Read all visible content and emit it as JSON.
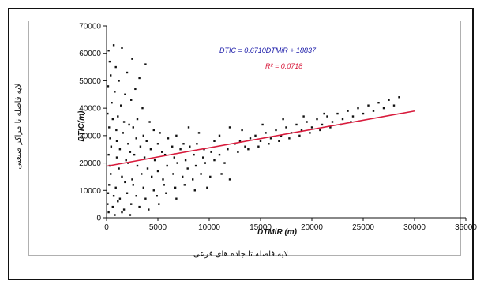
{
  "chart_data": {
    "type": "scatter",
    "x_axis_label": "DTMiR (m)",
    "y_axis_label": "DTIC(m)",
    "x_axis_label_fa": "لایه فاصله تا جاده های فرعی",
    "y_axis_label_fa": "لایه فاصله تا مراکز صنعتی",
    "equation": "DTIC = 0.6710DTMiR + 18837",
    "r_squared": "R² = 0.0718",
    "xlim": [
      0,
      35000
    ],
    "ylim": [
      0,
      70000
    ],
    "x_ticks": [
      "0",
      "5000",
      "10000",
      "15000",
      "20000",
      "25000",
      "30000",
      "35000"
    ],
    "y_ticks": [
      "0",
      "10000",
      "20000",
      "30000",
      "40000",
      "50000",
      "60000",
      "70000"
    ],
    "trendline": {
      "slope": 0.671,
      "intercept": 18837,
      "x_start": 0,
      "x_end": 30000
    },
    "colors": {
      "points": "#111111",
      "trendline": "#d81b3c",
      "equation": "#1a1aa8",
      "r_squared": "#d81b3c"
    },
    "grid": false,
    "legend": "none",
    "series": [
      {
        "values": [
          [
            200,
            61000
          ],
          [
            700,
            63000
          ],
          [
            1500,
            62000
          ],
          [
            300,
            57000
          ],
          [
            900,
            55000
          ],
          [
            2500,
            58000
          ],
          [
            3800,
            56000
          ],
          [
            400,
            52000
          ],
          [
            1200,
            50000
          ],
          [
            2000,
            53000
          ],
          [
            3200,
            51000
          ],
          [
            150,
            48000
          ],
          [
            800,
            46000
          ],
          [
            1800,
            45000
          ],
          [
            2800,
            47000
          ],
          [
            500,
            42000
          ],
          [
            1400,
            41000
          ],
          [
            2400,
            43000
          ],
          [
            3500,
            40000
          ],
          [
            100,
            38000
          ],
          [
            600,
            36000
          ],
          [
            1100,
            37000
          ],
          [
            1700,
            35000
          ],
          [
            2200,
            34000
          ],
          [
            3000,
            36000
          ],
          [
            4200,
            35000
          ],
          [
            250,
            33000
          ],
          [
            950,
            32000
          ],
          [
            1600,
            31000
          ],
          [
            2600,
            33000
          ],
          [
            3600,
            30000
          ],
          [
            4600,
            32000
          ],
          [
            5200,
            31000
          ],
          [
            350,
            29000
          ],
          [
            1000,
            28000
          ],
          [
            2100,
            27000
          ],
          [
            2900,
            29000
          ],
          [
            3900,
            28000
          ],
          [
            5000,
            27000
          ],
          [
            6000,
            29000
          ],
          [
            6800,
            30000
          ],
          [
            7500,
            27000
          ],
          [
            450,
            26000
          ],
          [
            1300,
            25000
          ],
          [
            2300,
            24000
          ],
          [
            3300,
            26000
          ],
          [
            4300,
            25000
          ],
          [
            5400,
            24000
          ],
          [
            6400,
            26000
          ],
          [
            7200,
            25000
          ],
          [
            8100,
            26000
          ],
          [
            8800,
            27000
          ],
          [
            9500,
            25000
          ],
          [
            200,
            23000
          ],
          [
            1000,
            22000
          ],
          [
            1900,
            21000
          ],
          [
            2700,
            23000
          ],
          [
            3700,
            22000
          ],
          [
            4700,
            21000
          ],
          [
            5700,
            23000
          ],
          [
            6600,
            22000
          ],
          [
            7700,
            21000
          ],
          [
            8500,
            23000
          ],
          [
            9400,
            22000
          ],
          [
            10200,
            24000
          ],
          [
            11000,
            23000
          ],
          [
            11800,
            25000
          ],
          [
            300,
            19000
          ],
          [
            1200,
            18000
          ],
          [
            2100,
            20000
          ],
          [
            3000,
            19000
          ],
          [
            4000,
            18000
          ],
          [
            5000,
            17000
          ],
          [
            5900,
            19000
          ],
          [
            6900,
            20000
          ],
          [
            7900,
            18000
          ],
          [
            8700,
            19000
          ],
          [
            9600,
            20000
          ],
          [
            10500,
            21000
          ],
          [
            11500,
            20000
          ],
          [
            400,
            16000
          ],
          [
            1500,
            15000
          ],
          [
            2500,
            14000
          ],
          [
            3400,
            16000
          ],
          [
            4400,
            15000
          ],
          [
            5500,
            14000
          ],
          [
            6500,
            16000
          ],
          [
            7400,
            15000
          ],
          [
            8400,
            14000
          ],
          [
            9200,
            16000
          ],
          [
            10100,
            15000
          ],
          [
            11200,
            16000
          ],
          [
            12000,
            14000
          ],
          [
            250,
            12000
          ],
          [
            900,
            11000
          ],
          [
            1800,
            13000
          ],
          [
            2600,
            12000
          ],
          [
            3600,
            11000
          ],
          [
            4600,
            10000
          ],
          [
            5600,
            12000
          ],
          [
            6700,
            11000
          ],
          [
            7600,
            12000
          ],
          [
            8600,
            10000
          ],
          [
            9800,
            11000
          ],
          [
            150,
            9000
          ],
          [
            700,
            8000
          ],
          [
            1300,
            7000
          ],
          [
            2000,
            9000
          ],
          [
            2900,
            8000
          ],
          [
            3800,
            7000
          ],
          [
            4900,
            8000
          ],
          [
            5800,
            9000
          ],
          [
            6800,
            7000
          ],
          [
            100,
            5000
          ],
          [
            600,
            4000
          ],
          [
            1100,
            6000
          ],
          [
            1700,
            3000
          ],
          [
            2400,
            5000
          ],
          [
            3200,
            4000
          ],
          [
            4100,
            3000
          ],
          [
            5100,
            5000
          ],
          [
            200,
            2000
          ],
          [
            800,
            1000
          ],
          [
            1500,
            2000
          ],
          [
            2300,
            1000
          ],
          [
            12500,
            27000
          ],
          [
            13000,
            28000
          ],
          [
            13500,
            26000
          ],
          [
            14000,
            29000
          ],
          [
            14500,
            30000
          ],
          [
            15000,
            28000
          ],
          [
            15500,
            31000
          ],
          [
            16000,
            29000
          ],
          [
            16500,
            32000
          ],
          [
            17000,
            30000
          ],
          [
            17500,
            33000
          ],
          [
            18000,
            31000
          ],
          [
            18500,
            34000
          ],
          [
            19000,
            32000
          ],
          [
            19500,
            35000
          ],
          [
            20000,
            33000
          ],
          [
            20500,
            36000
          ],
          [
            21000,
            34000
          ],
          [
            21500,
            37000
          ],
          [
            22000,
            35000
          ],
          [
            22500,
            38000
          ],
          [
            23000,
            36000
          ],
          [
            23500,
            39000
          ],
          [
            24000,
            37000
          ],
          [
            24500,
            40000
          ],
          [
            25000,
            38000
          ],
          [
            25500,
            41000
          ],
          [
            26000,
            39000
          ],
          [
            26500,
            42000
          ],
          [
            27000,
            40000
          ],
          [
            27500,
            43000
          ],
          [
            28000,
            41000
          ],
          [
            28500,
            44000
          ],
          [
            12800,
            24000
          ],
          [
            13800,
            25000
          ],
          [
            14800,
            26000
          ],
          [
            15800,
            27000
          ],
          [
            16800,
            28000
          ],
          [
            17800,
            29000
          ],
          [
            18800,
            30000
          ],
          [
            19800,
            31000
          ],
          [
            20800,
            32000
          ],
          [
            21800,
            33000
          ],
          [
            22800,
            34000
          ],
          [
            23800,
            35000
          ],
          [
            13200,
            32000
          ],
          [
            15200,
            34000
          ],
          [
            17200,
            36000
          ],
          [
            19200,
            37000
          ],
          [
            21200,
            38000
          ],
          [
            11000,
            30000
          ],
          [
            12000,
            33000
          ],
          [
            10500,
            28000
          ],
          [
            9000,
            31000
          ],
          [
            8000,
            33000
          ]
        ]
      }
    ]
  }
}
